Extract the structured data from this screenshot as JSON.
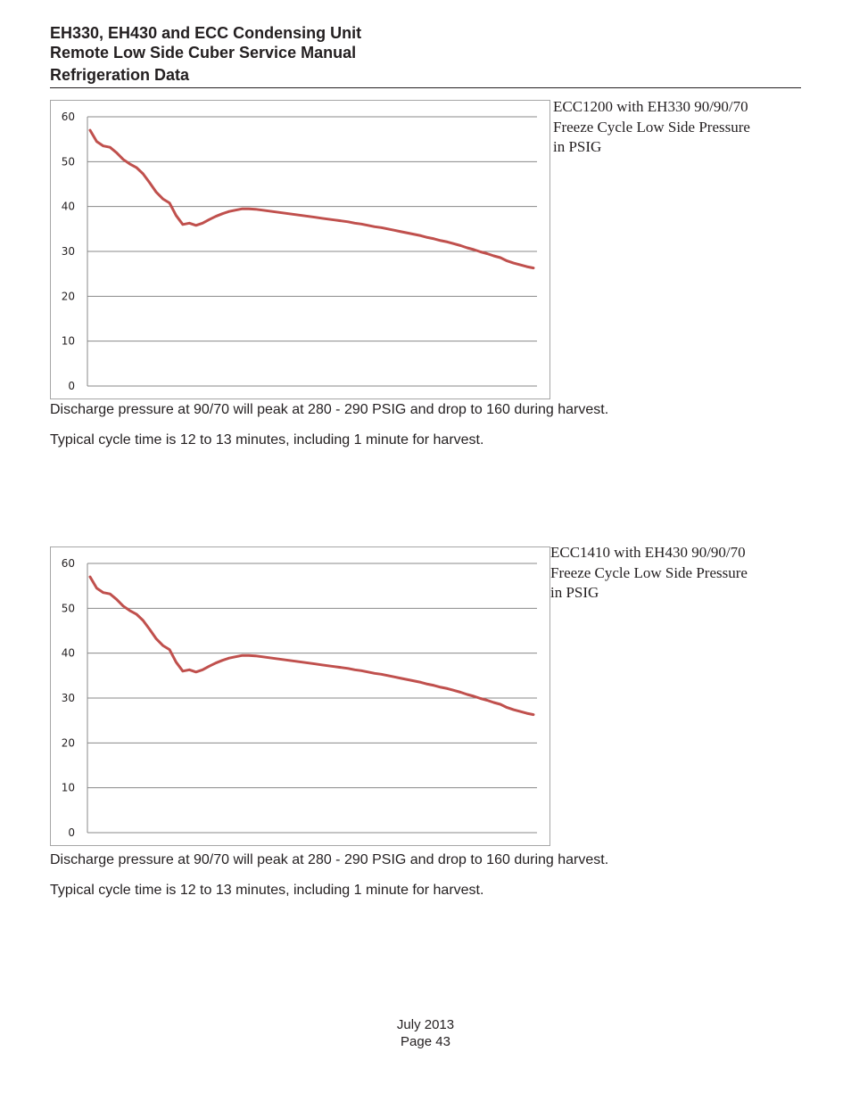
{
  "header": {
    "line1": "EH330, EH430 and ECC Condensing Unit",
    "line2": "Remote Low Side Cuber Service Manual",
    "line3": "Refrigeration Data"
  },
  "sections": [
    {
      "caption": [
        "ECC1200 with EH330 90/90/70",
        "Freeze Cycle Low Side Pressure",
        "in PSIG"
      ],
      "note1": "Discharge pressure at 90/70 will peak at 280 - 290 PSIG and drop to 160 during harvest.",
      "note2": "Typical cycle time is 12 to 13 minutes, including 1 minute for harvest."
    },
    {
      "caption": [
        "ECC1410 with EH430 90/90/70",
        "Freeze Cycle Low Side Pressure",
        "in PSIG"
      ],
      "note1": "Discharge pressure at 90/70 will peak at 280 - 290 PSIG and drop to 160 during harvest.",
      "note2": "Typical cycle time is 12 to 13 minutes, including 1 minute for harvest."
    }
  ],
  "chart_data": [
    {
      "type": "line",
      "title": "",
      "xlabel": "",
      "ylabel": "",
      "ylim": [
        0,
        60
      ],
      "yticks": [
        0,
        10,
        20,
        30,
        40,
        50,
        60
      ],
      "grid": true,
      "legend": "none",
      "color": "#c0504d",
      "series": [
        {
          "values": [
            57,
            54.5,
            53.5,
            53.2,
            52,
            50.5,
            49.5,
            48.7,
            47.3,
            45.3,
            43.2,
            41.7,
            40.8,
            38,
            36,
            36.3,
            35.8,
            36.3,
            37.1,
            37.8,
            38.4,
            38.9,
            39.2,
            39.5,
            39.5,
            39.4,
            39.2,
            39,
            38.8,
            38.6,
            38.4,
            38.2,
            38,
            37.8,
            37.6,
            37.4,
            37.2,
            37,
            36.8,
            36.6,
            36.3,
            36.1,
            35.8,
            35.5,
            35.3,
            35,
            34.7,
            34.4,
            34.1,
            33.8,
            33.5,
            33.1,
            32.8,
            32.4,
            32.1,
            31.7,
            31.3,
            30.8,
            30.4,
            29.9,
            29.5,
            29,
            28.6,
            27.9,
            27.4,
            27,
            26.6,
            26.3
          ]
        }
      ]
    },
    {
      "type": "line",
      "title": "",
      "xlabel": "",
      "ylabel": "",
      "ylim": [
        0,
        60
      ],
      "yticks": [
        0,
        10,
        20,
        30,
        40,
        50,
        60
      ],
      "grid": true,
      "legend": "none",
      "color": "#c0504d",
      "series": [
        {
          "values": [
            57,
            54.5,
            53.5,
            53.2,
            52,
            50.5,
            49.5,
            48.7,
            47.3,
            45.3,
            43.2,
            41.7,
            40.8,
            38,
            36,
            36.3,
            35.8,
            36.3,
            37.1,
            37.8,
            38.4,
            38.9,
            39.2,
            39.5,
            39.5,
            39.4,
            39.2,
            39,
            38.8,
            38.6,
            38.4,
            38.2,
            38,
            37.8,
            37.6,
            37.4,
            37.2,
            37,
            36.8,
            36.6,
            36.3,
            36.1,
            35.8,
            35.5,
            35.3,
            35,
            34.7,
            34.4,
            34.1,
            33.8,
            33.5,
            33.1,
            32.8,
            32.4,
            32.1,
            31.7,
            31.3,
            30.8,
            30.4,
            29.9,
            29.5,
            29,
            28.6,
            27.9,
            27.4,
            27,
            26.6,
            26.3
          ]
        }
      ]
    }
  ],
  "footer": {
    "date": "July 2013",
    "page": "Page 43"
  }
}
